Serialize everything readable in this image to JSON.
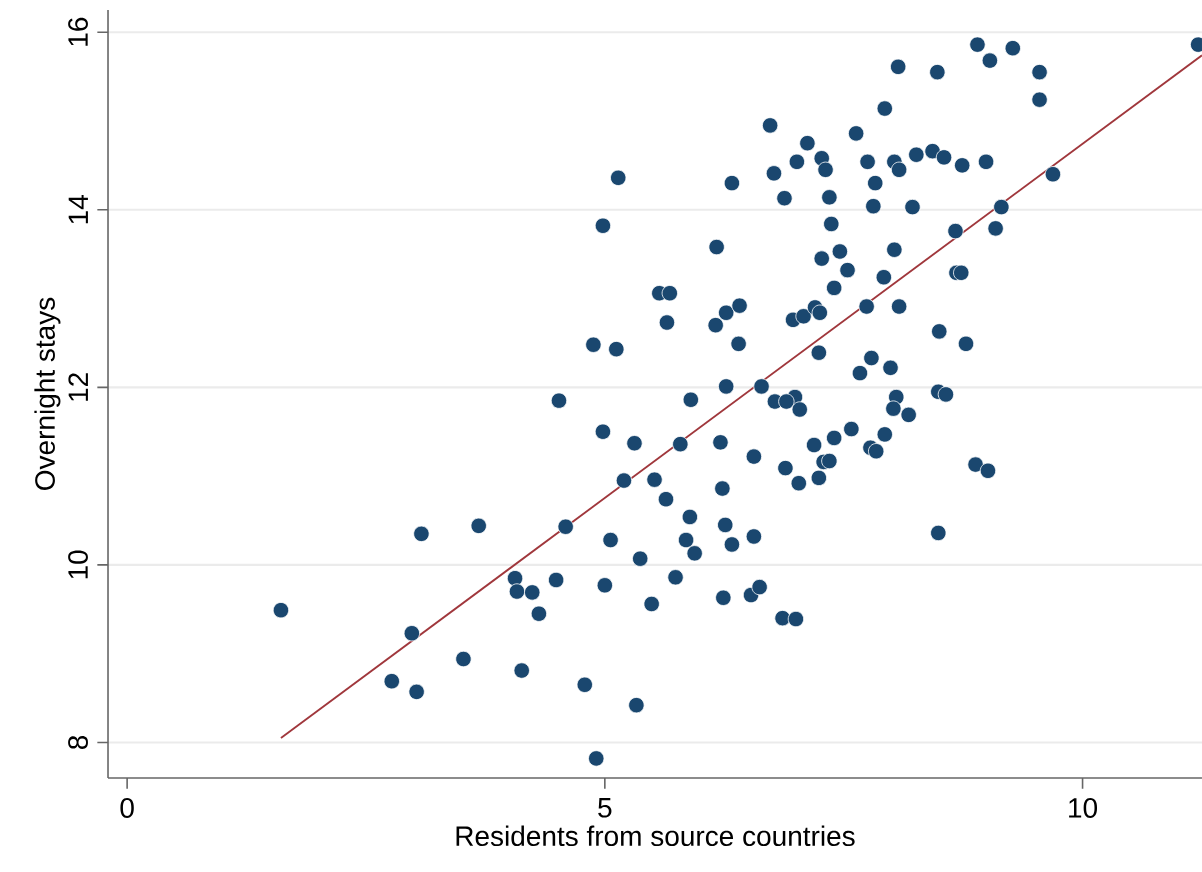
{
  "chart_data": {
    "type": "scatter",
    "xlabel": "Residents from source countries",
    "ylabel": "Overnight stays",
    "xlim": [
      -0.2,
      11.25
    ],
    "ylim": [
      7.6,
      16.25
    ],
    "xticks": [
      0,
      5,
      10
    ],
    "yticks": [
      8,
      10,
      12,
      14,
      16
    ],
    "grid": "y",
    "marker": "circle",
    "series": [
      {
        "color": "#1a476f",
        "x": [
          1.61,
          3.08,
          3.68,
          2.98,
          2.77,
          3.03,
          3.52,
          4.13,
          4.06,
          4.08,
          4.24,
          4.31,
          4.49,
          4.59,
          4.52,
          4.98,
          5.31,
          5.2,
          5.52,
          5.06,
          5.37,
          5.0,
          5.49,
          4.79,
          5.33,
          4.91,
          5.14,
          4.98,
          4.88,
          5.12,
          6.33,
          6.17,
          5.57,
          5.68,
          5.65,
          6.16,
          6.27,
          6.41,
          6.4,
          6.73,
          6.77,
          6.88,
          7.01,
          7.12,
          7.27,
          7.31,
          7.35,
          7.37,
          7.27,
          7.46,
          7.54,
          7.4,
          6.97,
          7.08,
          7.2,
          7.25,
          7.24,
          7.63,
          7.93,
          8.07,
          8.48,
          8.9,
          9.03,
          9.27,
          9.55,
          9.55,
          11.21,
          7.75,
          7.83,
          8.03,
          8.08,
          7.81,
          8.22,
          8.26,
          8.43,
          8.55,
          8.74,
          8.99,
          9.69,
          9.15,
          9.09,
          8.67,
          8.03,
          7.92,
          8.68,
          8.73,
          7.74,
          8.08,
          8.5,
          8.78,
          7.79,
          7.99,
          7.67,
          6.27,
          5.9,
          6.64,
          8.05,
          8.49,
          8.57,
          6.78,
          6.99,
          6.9,
          7.04,
          8.02,
          8.18,
          5.79,
          6.21,
          6.56,
          5.64,
          6.23,
          5.89,
          6.26,
          5.85,
          5.94,
          6.33,
          6.56,
          5.74,
          6.24,
          6.53,
          6.62,
          6.86,
          7.0,
          6.89,
          7.03,
          7.19,
          7.4,
          7.58,
          7.29,
          7.35,
          7.24,
          7.78,
          7.84,
          7.93,
          8.49,
          8.88,
          9.01
        ],
        "values": [
          9.49,
          10.35,
          10.44,
          9.23,
          8.69,
          8.57,
          8.94,
          8.81,
          9.85,
          9.7,
          9.69,
          9.45,
          9.83,
          10.43,
          11.85,
          11.5,
          11.37,
          10.95,
          10.96,
          10.28,
          10.07,
          9.77,
          9.56,
          8.65,
          8.42,
          7.82,
          14.36,
          13.82,
          12.48,
          12.43,
          14.3,
          13.58,
          13.06,
          13.06,
          12.73,
          12.7,
          12.84,
          12.92,
          12.49,
          14.95,
          14.41,
          14.13,
          14.54,
          14.75,
          14.58,
          14.45,
          14.14,
          13.84,
          13.45,
          13.53,
          13.32,
          13.12,
          12.76,
          12.8,
          12.9,
          12.84,
          12.39,
          14.86,
          15.14,
          15.61,
          15.55,
          15.86,
          15.68,
          15.82,
          15.55,
          15.24,
          15.86,
          14.54,
          14.3,
          14.54,
          14.45,
          14.04,
          14.03,
          14.62,
          14.66,
          14.59,
          14.5,
          14.54,
          14.4,
          14.03,
          13.79,
          13.76,
          13.55,
          13.24,
          13.29,
          13.29,
          12.91,
          12.91,
          12.63,
          12.49,
          12.33,
          12.22,
          12.16,
          12.01,
          11.86,
          12.01,
          11.89,
          11.95,
          11.92,
          11.84,
          11.89,
          11.84,
          11.75,
          11.76,
          11.69,
          11.36,
          11.38,
          11.22,
          10.74,
          10.86,
          10.54,
          10.45,
          10.28,
          10.13,
          10.23,
          10.32,
          9.86,
          9.63,
          9.66,
          9.75,
          9.4,
          9.39,
          11.09,
          10.92,
          11.35,
          11.43,
          11.53,
          11.16,
          11.17,
          10.98,
          11.32,
          11.28,
          11.47,
          10.36,
          11.13,
          11.06
        ]
      },
      {
        "type": "line",
        "color": "#a0373c",
        "marker": "none",
        "line_style": "solid",
        "x": [
          1.61,
          11.25
        ],
        "values": [
          8.05,
          15.74
        ]
      }
    ]
  }
}
